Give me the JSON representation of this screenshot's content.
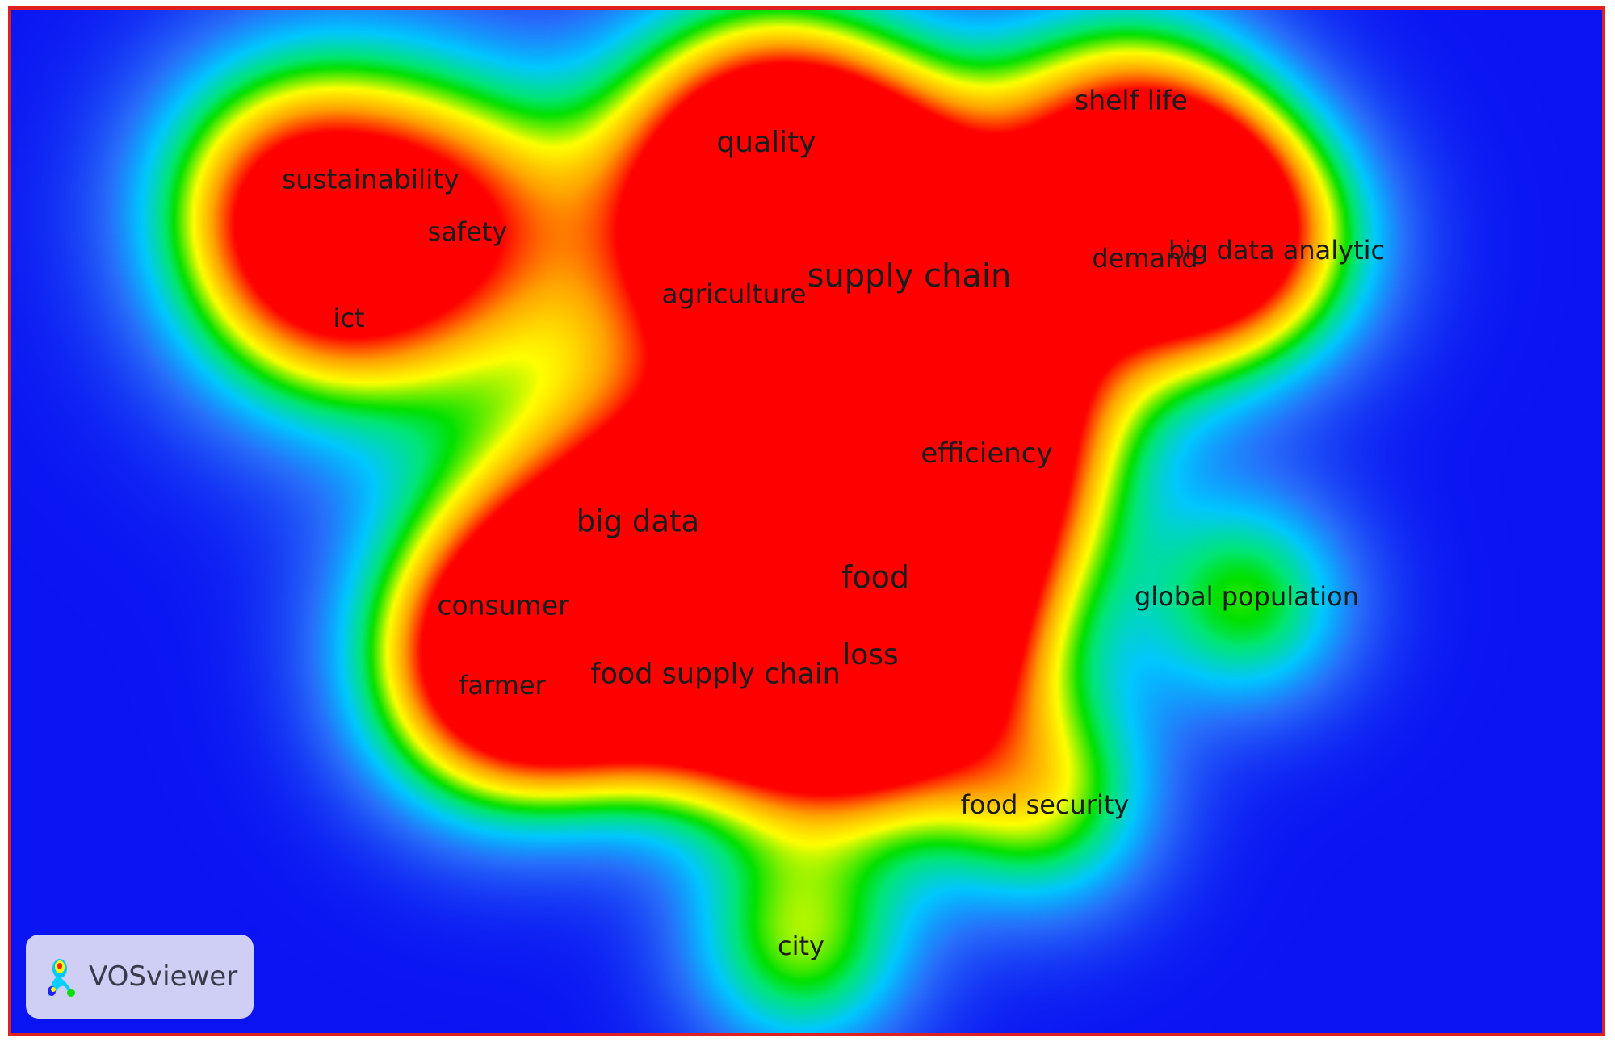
{
  "app": {
    "name": "VOSviewer",
    "logo_icon": "vosviewer-logo-icon"
  },
  "view": "density-visualization",
  "colors": {
    "background": "#0a14f2",
    "border": "#e02020",
    "scale": [
      "#0a14f2",
      "#00c8ff",
      "#00e000",
      "#ffff00",
      "#ff9900",
      "#ff0000"
    ]
  },
  "terms": [
    {
      "label": "sustainability",
      "weight": 0.62,
      "level": 0.72
    },
    {
      "label": "safety",
      "weight": 0.58,
      "level": 0.74
    },
    {
      "label": "ict",
      "weight": 0.55,
      "level": 0.72
    },
    {
      "label": "quality",
      "weight": 0.75,
      "level": 0.88
    },
    {
      "label": "agriculture",
      "weight": 0.62,
      "level": 0.82
    },
    {
      "label": "supply chain",
      "weight": 1.0,
      "level": 1.0
    },
    {
      "label": "shelf life",
      "weight": 0.6,
      "level": 0.7
    },
    {
      "label": "demand",
      "weight": 0.58,
      "level": 0.72
    },
    {
      "label": "big data analytic",
      "weight": 0.55,
      "level": 0.7
    },
    {
      "label": "efficiency",
      "weight": 0.68,
      "level": 0.84
    },
    {
      "label": "big data",
      "weight": 0.85,
      "level": 0.93
    },
    {
      "label": "food",
      "weight": 0.9,
      "level": 1.0
    },
    {
      "label": "consumer",
      "weight": 0.6,
      "level": 0.8
    },
    {
      "label": "farmer",
      "weight": 0.58,
      "level": 0.78
    },
    {
      "label": "food supply chain",
      "weight": 0.72,
      "level": 0.88
    },
    {
      "label": "loss",
      "weight": 0.75,
      "level": 0.98
    },
    {
      "label": "global population",
      "weight": 0.55,
      "level": 0.62
    },
    {
      "label": "food security",
      "weight": 0.58,
      "level": 0.68
    },
    {
      "label": "city",
      "weight": 0.58,
      "level": 0.68
    }
  ]
}
